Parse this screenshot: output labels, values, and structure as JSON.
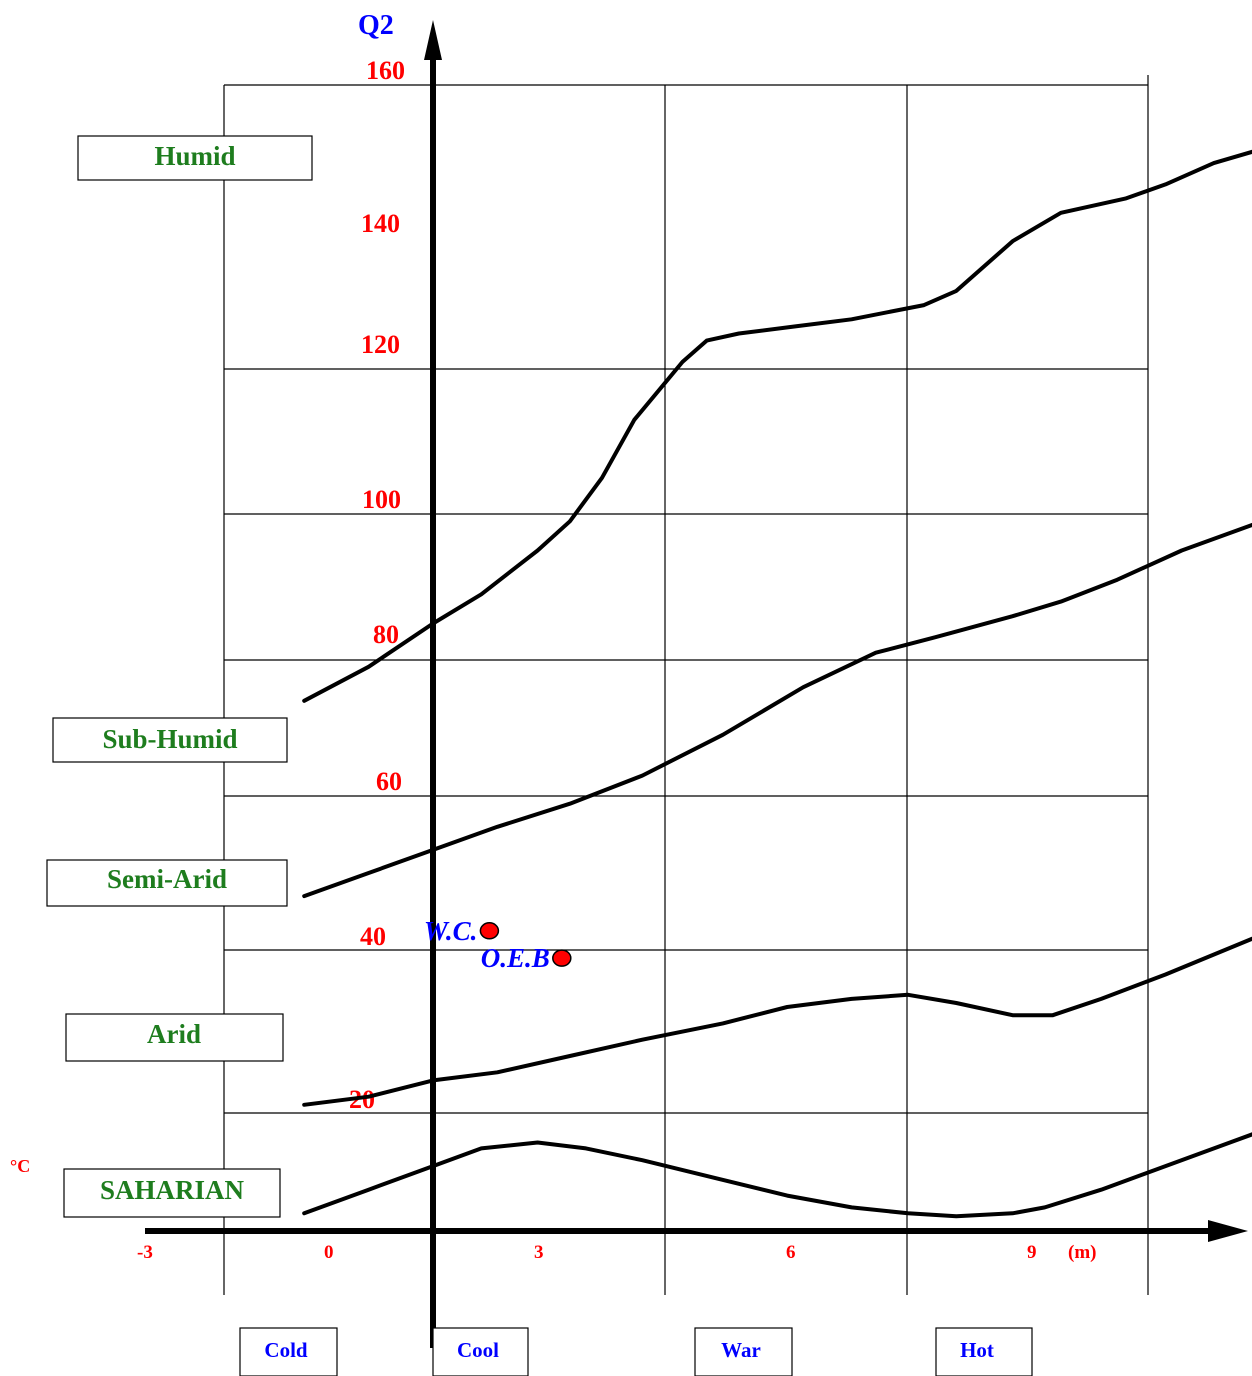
{
  "chart_data": {
    "type": "line",
    "y_axis_title": "Q2",
    "x_unit_label": "(m)",
    "degree_label": "°C",
    "x_ticks": [
      "-3",
      "0",
      "3",
      "6",
      "9"
    ],
    "y_ticks": [
      "20",
      "40",
      "60",
      "80",
      "100",
      "120",
      "140",
      "160"
    ],
    "xlim": [
      -3.4,
      10.3
    ],
    "ylim": [
      0,
      160
    ],
    "zones": [
      "Humid",
      "Sub-Humid",
      "Semi-Arid",
      "Arid",
      "SAHARIAN"
    ],
    "temperature_classes": [
      "Cold",
      "Cool",
      "War",
      "Hot"
    ],
    "series": [
      {
        "values": [
          [
            -1.6,
            74
          ],
          [
            -0.8,
            79
          ],
          [
            0,
            85
          ],
          [
            0.6,
            89
          ],
          [
            1.3,
            95
          ],
          [
            1.7,
            99
          ],
          [
            2.1,
            105
          ],
          [
            2.5,
            113
          ],
          [
            3.1,
            121
          ],
          [
            3.4,
            124
          ],
          [
            3.8,
            125
          ],
          [
            4.5,
            126
          ],
          [
            5.2,
            127
          ],
          [
            6.1,
            129
          ],
          [
            6.5,
            131
          ],
          [
            7.2,
            138
          ],
          [
            7.8,
            142
          ],
          [
            8.6,
            144
          ],
          [
            9.1,
            146
          ],
          [
            9.7,
            149
          ],
          [
            10.3,
            151
          ]
        ]
      },
      {
        "values": [
          [
            -1.6,
            47
          ],
          [
            -0.8,
            50
          ],
          [
            0,
            53
          ],
          [
            0.8,
            56
          ],
          [
            1.7,
            59
          ],
          [
            2.6,
            63
          ],
          [
            3.6,
            69
          ],
          [
            4.6,
            76
          ],
          [
            5.5,
            81
          ],
          [
            6.2,
            83
          ],
          [
            7.2,
            86
          ],
          [
            7.8,
            88
          ],
          [
            8.5,
            91
          ],
          [
            9.3,
            95
          ],
          [
            10.3,
            99
          ]
        ]
      },
      {
        "values": [
          [
            -1.6,
            21
          ],
          [
            -0.8,
            22
          ],
          [
            0,
            24
          ],
          [
            0.8,
            25
          ],
          [
            1.7,
            27
          ],
          [
            2.6,
            29
          ],
          [
            3.6,
            31
          ],
          [
            4.4,
            33
          ],
          [
            5.2,
            34
          ],
          [
            5.9,
            34.5
          ],
          [
            6.5,
            33.5
          ],
          [
            7.2,
            32
          ],
          [
            7.7,
            32
          ],
          [
            8.3,
            34
          ],
          [
            9.1,
            37
          ],
          [
            10.3,
            42
          ]
        ]
      },
      {
        "values": [
          [
            -1.6,
            3
          ],
          [
            -0.8,
            7
          ],
          [
            0,
            11
          ],
          [
            0.6,
            14
          ],
          [
            1.3,
            15
          ],
          [
            1.9,
            14
          ],
          [
            2.6,
            12
          ],
          [
            3.5,
            9
          ],
          [
            4.4,
            6
          ],
          [
            5.2,
            4
          ],
          [
            5.9,
            3
          ],
          [
            6.5,
            2.5
          ],
          [
            7.2,
            3
          ],
          [
            7.6,
            4
          ],
          [
            8.3,
            7
          ],
          [
            9.1,
            11
          ],
          [
            10.3,
            17
          ]
        ]
      }
    ],
    "points": [
      {
        "label": "W.C.",
        "x": 0.7,
        "y": 42.5
      },
      {
        "label": "O.E.B",
        "x": 1.6,
        "y": 39
      }
    ],
    "colors": {
      "tick": "#ff0000",
      "axis_title": "#0000ff",
      "zone_text": "#1e7d1e",
      "point_fill": "#ff0000",
      "point_label": "#0000ff",
      "line": "#000000"
    }
  }
}
